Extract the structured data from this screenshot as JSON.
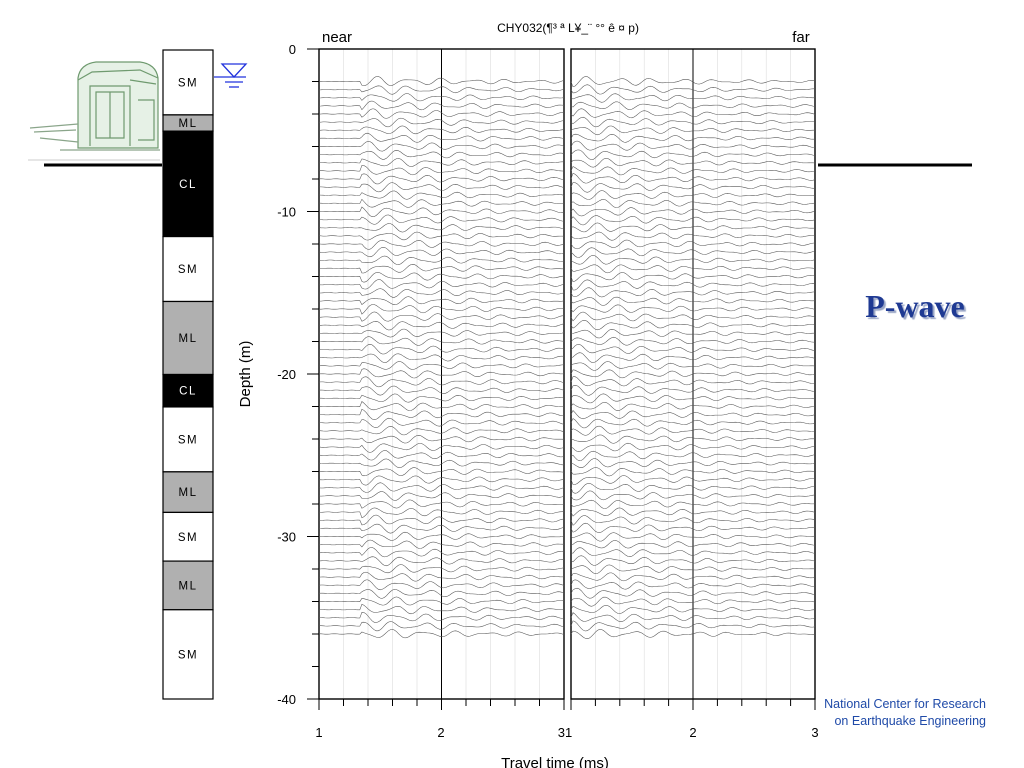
{
  "chart_data": {
    "type": "seismogram",
    "title": "CHY032(¶³ ª L¥_¨ °° ê ¤ p)",
    "xlabel": "Travel time (ms)",
    "ylabel": "Depth (m)",
    "ylim": [
      0,
      -40
    ],
    "y_ticks": [
      0,
      -10,
      -20,
      -30,
      -40
    ],
    "panels": [
      {
        "label": "near",
        "xlim": [
          1,
          3
        ],
        "x_tick_labels": [
          "1",
          "2",
          "3"
        ],
        "arrival_ms": 1.34
      },
      {
        "label": "far",
        "xlim": [
          1,
          3
        ],
        "x_tick_labels": [
          "1",
          "2",
          "3"
        ],
        "arrival_ms": 1.0
      }
    ],
    "reference_line_ms": 2,
    "trace_depths": {
      "start": -2.0,
      "end": -36.0,
      "step": 0.5
    }
  },
  "soil_column": [
    {
      "label": "SM",
      "top": 0.0,
      "bottom": 4.0,
      "fill": "#ffffff",
      "text": "#000000"
    },
    {
      "label": "ML",
      "top": 4.0,
      "bottom": 5.0,
      "fill": "#b0b0b0",
      "text": "#000000"
    },
    {
      "label": "CL",
      "top": 5.0,
      "bottom": 11.5,
      "fill": "#000000",
      "text": "#ffffff"
    },
    {
      "label": "SM",
      "top": 11.5,
      "bottom": 15.5,
      "fill": "#ffffff",
      "text": "#000000"
    },
    {
      "label": "ML",
      "top": 15.5,
      "bottom": 20.0,
      "fill": "#b0b0b0",
      "text": "#000000"
    },
    {
      "label": "CL",
      "top": 20.0,
      "bottom": 22.0,
      "fill": "#000000",
      "text": "#ffffff"
    },
    {
      "label": "SM",
      "top": 22.0,
      "bottom": 26.0,
      "fill": "#ffffff",
      "text": "#000000"
    },
    {
      "label": "ML",
      "top": 26.0,
      "bottom": 28.5,
      "fill": "#b0b0b0",
      "text": "#000000"
    },
    {
      "label": "SM",
      "top": 28.5,
      "bottom": 31.5,
      "fill": "#ffffff",
      "text": "#000000"
    },
    {
      "label": "ML",
      "top": 31.5,
      "bottom": 34.5,
      "fill": "#b0b0b0",
      "text": "#000000"
    },
    {
      "label": "SM",
      "top": 34.5,
      "bottom": 40.0,
      "fill": "#ffffff",
      "text": "#000000"
    }
  ],
  "slide": {
    "title": "P-wave",
    "org_line1": "National Center for Research",
    "org_line2": "on Earthquake Engineering"
  },
  "colors": {
    "title": "#1f3a93",
    "org": "#1f4aa8",
    "water_table": "#2233dd",
    "trace": "#555555",
    "shed": "#7fa67f"
  }
}
